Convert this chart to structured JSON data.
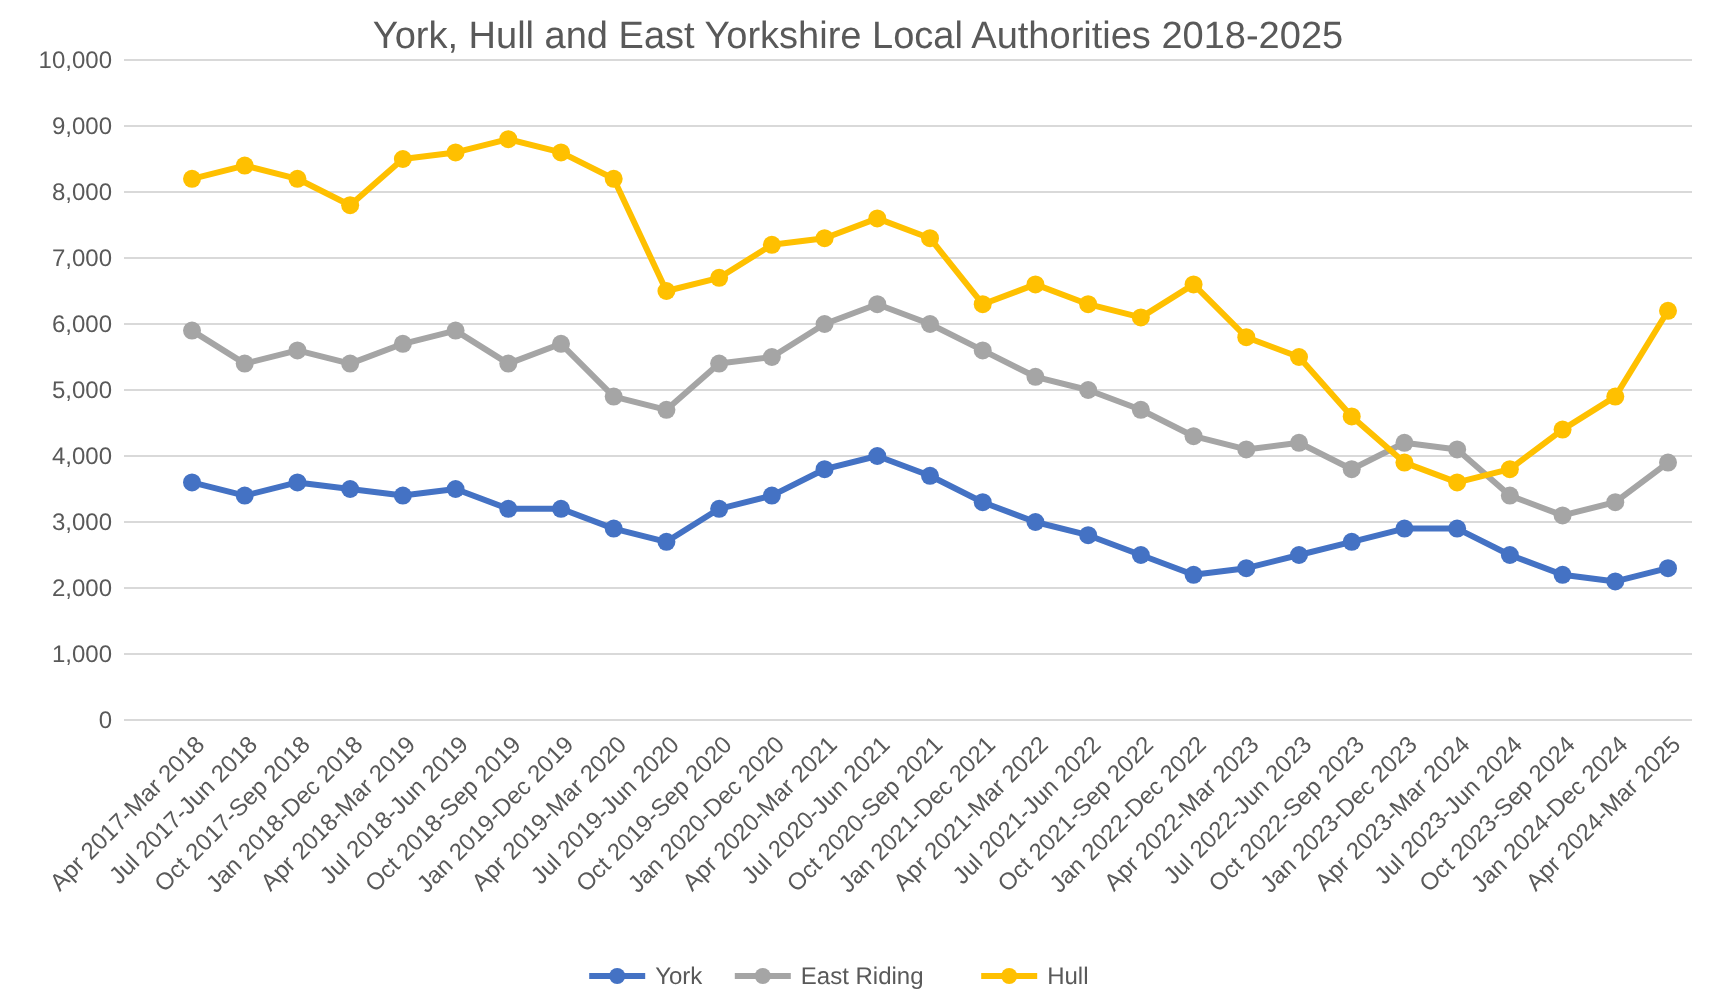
{
  "chart_data": {
    "type": "line",
    "title": "York, Hull and East Yorkshire Local Authorities 2018-2025",
    "categories": [
      "Apr 2017-Mar 2018",
      "Jul 2017-Jun 2018",
      "Oct 2017-Sep 2018",
      "Jan 2018-Dec 2018",
      "Apr 2018-Mar 2019",
      "Jul 2018-Jun 2019",
      "Oct 2018-Sep 2019",
      "Jan 2019-Dec 2019",
      "Apr 2019-Mar 2020",
      "Jul 2019-Jun 2020",
      "Oct 2019-Sep 2020",
      "Jan 2020-Dec 2020",
      "Apr 2020-Mar 2021",
      "Jul 2020-Jun 2021",
      "Oct 2020-Sep 2021",
      "Jan 2021-Dec 2021",
      "Apr 2021-Mar 2022",
      "Jul 2021-Jun 2022",
      "Oct 2021-Sep 2022",
      "Jan 2022-Dec 2022",
      "Apr 2022-Mar 2023",
      "Jul 2022-Jun 2023",
      "Oct 2022-Sep 2023",
      "Jan 2023-Dec 2023",
      "Apr 2023-Mar 2024",
      "Jul 2023-Jun 2024",
      "Oct 2023-Sep 2024",
      "Jan 2024-Dec 2024",
      "Apr 2024-Mar 2025"
    ],
    "series": [
      {
        "name": "York",
        "color": "#4472c4",
        "values": [
          3600,
          3400,
          3600,
          3500,
          3400,
          3500,
          3200,
          3200,
          2900,
          2700,
          3200,
          3400,
          3800,
          4000,
          3700,
          3300,
          3000,
          2800,
          2500,
          2200,
          2300,
          2500,
          2700,
          2900,
          2900,
          2500,
          2200,
          2100,
          2300
        ]
      },
      {
        "name": "East Riding",
        "color": "#a5a5a5",
        "values": [
          5900,
          5400,
          5600,
          5400,
          5700,
          5900,
          5400,
          5700,
          4900,
          4700,
          5400,
          5500,
          6000,
          6300,
          6000,
          5600,
          5200,
          5000,
          4700,
          4300,
          4100,
          4200,
          3800,
          4200,
          4100,
          3400,
          3100,
          3300,
          3900
        ]
      },
      {
        "name": "Hull",
        "color": "#ffc000",
        "values": [
          8200,
          8400,
          8200,
          7800,
          8500,
          8600,
          8800,
          8600,
          8200,
          6500,
          6700,
          7200,
          7300,
          7600,
          7300,
          6300,
          6600,
          6300,
          6100,
          6600,
          5800,
          5500,
          4600,
          3900,
          3600,
          3800,
          4400,
          4900,
          6200
        ]
      }
    ],
    "ylim": [
      0,
      10000
    ],
    "yticks": [
      {
        "value": 0,
        "label": "0"
      },
      {
        "value": 1000,
        "label": "1,000"
      },
      {
        "value": 2000,
        "label": "2,000"
      },
      {
        "value": 3000,
        "label": "3,000"
      },
      {
        "value": 4000,
        "label": "4,000"
      },
      {
        "value": 5000,
        "label": "5,000"
      },
      {
        "value": 6000,
        "label": "6,000"
      },
      {
        "value": 7000,
        "label": "7,000"
      },
      {
        "value": 8000,
        "label": "8,000"
      },
      {
        "value": 9000,
        "label": "9,000"
      },
      {
        "value": 10000,
        "label": "10,000"
      }
    ],
    "grid": "y",
    "legend": "bottom",
    "marker": "circle",
    "line_style": "solid"
  }
}
